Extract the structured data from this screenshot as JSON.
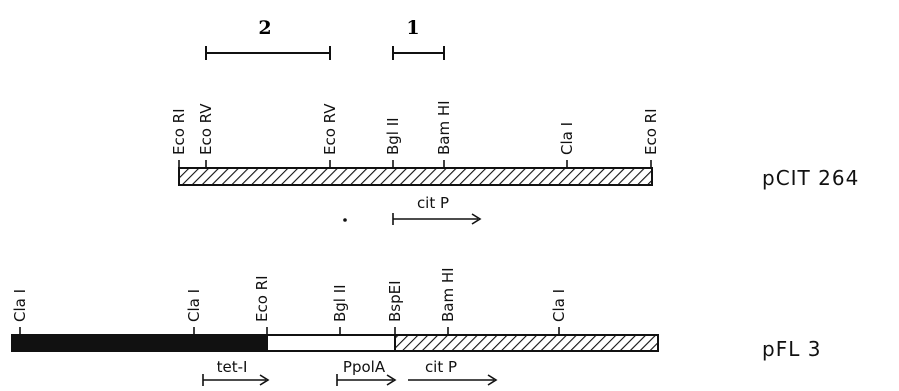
{
  "fragments": [
    {
      "label": "2"
    },
    {
      "label": "1"
    }
  ],
  "pcit264": {
    "name": "pCIT 264",
    "sites": [
      "Eco RI",
      "Eco RV",
      "Eco RV",
      "Bgl II",
      "Bam HI",
      "Cla I",
      "Eco RI"
    ],
    "gene": "cit P"
  },
  "pfl3": {
    "name": "pFL 3",
    "sites": [
      "Cla I",
      "Cla I",
      "Eco RI",
      "Bgl II",
      "BspEI",
      "Bam HI",
      "Cla I"
    ],
    "annotations": [
      "tet-I",
      "PpolA",
      "cit P"
    ]
  }
}
